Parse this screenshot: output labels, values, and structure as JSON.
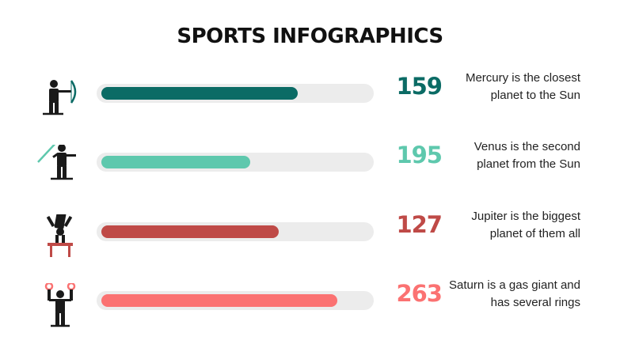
{
  "title": "SPORTS INFOGRAPHICS",
  "chart_data": {
    "type": "bar",
    "categories": [
      "Archery",
      "Javelin",
      "Pommel horse",
      "Rings"
    ],
    "values": [
      159,
      195,
      127,
      263
    ],
    "bar_fill_fraction": [
      0.72,
      0.55,
      0.65,
      0.86
    ]
  },
  "rows": [
    {
      "icon": "archer-icon",
      "value": "159",
      "color": "#0b6b65",
      "desc_line1": "Mercury is the closest",
      "desc_line2": "planet to the Sun"
    },
    {
      "icon": "javelin-thrower-icon",
      "value": "195",
      "color": "#5ec8ad",
      "desc_line1": "Venus is the second",
      "desc_line2": "planet from the Sun"
    },
    {
      "icon": "gymnast-icon",
      "value": "127",
      "color": "#bf4a47",
      "desc_line1": "Jupiter is the biggest",
      "desc_line2": "planet of them all"
    },
    {
      "icon": "rings-gymnast-icon",
      "value": "263",
      "color": "#fb7272",
      "desc_line1": "Saturn is a gas giant and",
      "desc_line2": "has several rings"
    }
  ]
}
